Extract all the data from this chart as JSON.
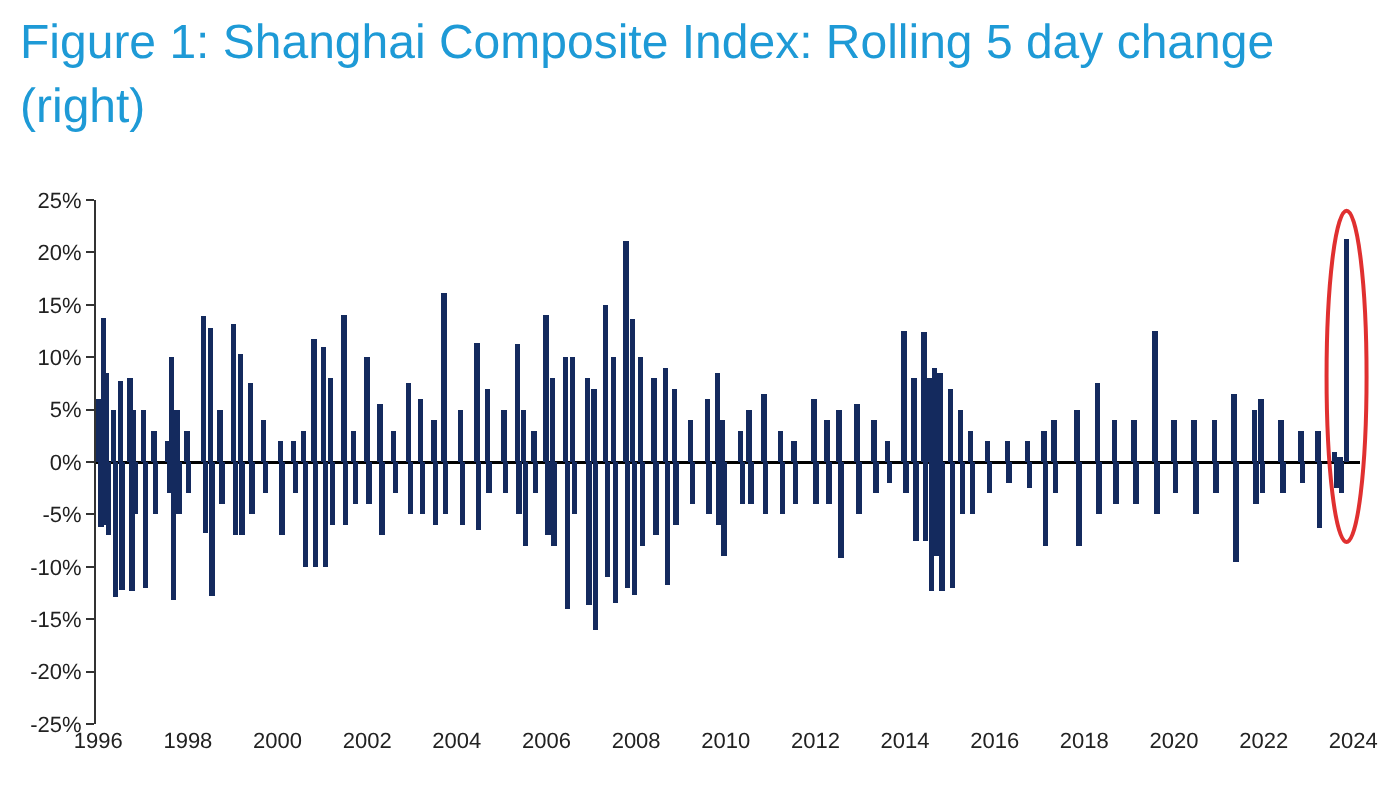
{
  "chart_data": {
    "type": "bar",
    "title": "Figure 1: Shanghai Composite Index: Rolling 5 day change (right)",
    "x": [
      1996.02,
      1996.06,
      1996.12,
      1996.16,
      1996.19,
      1996.23,
      1996.34,
      1996.38,
      1996.49,
      1996.53,
      1996.71,
      1996.75,
      1996.79,
      1996.83,
      1997.01,
      1997.05,
      1997.24,
      1997.28,
      1997.55,
      1997.59,
      1997.64,
      1997.68,
      1997.76,
      1997.8,
      1997.98,
      1998.02,
      1998.35,
      1998.39,
      1998.5,
      1998.54,
      1998.72,
      1998.76,
      1999.02,
      1999.06,
      1999.17,
      1999.21,
      1999.39,
      1999.43,
      1999.69,
      1999.73,
      2000.06,
      2000.1,
      2000.36,
      2000.4,
      2000.58,
      2000.62,
      2000.81,
      2000.85,
      2001.03,
      2001.07,
      2001.18,
      2001.22,
      2001.48,
      2001.52,
      2001.7,
      2001.74,
      2002.0,
      2002.04,
      2002.29,
      2002.33,
      2002.59,
      2002.63,
      2002.92,
      2002.96,
      2003.19,
      2003.23,
      2003.49,
      2003.53,
      2003.71,
      2003.75,
      2004.08,
      2004.12,
      2004.45,
      2004.49,
      2004.68,
      2004.72,
      2005.05,
      2005.09,
      2005.35,
      2005.39,
      2005.49,
      2005.53,
      2005.72,
      2005.76,
      2005.99,
      2006.03,
      2006.13,
      2006.17,
      2006.43,
      2006.47,
      2006.58,
      2006.62,
      2006.91,
      2006.95,
      2007.06,
      2007.1,
      2007.32,
      2007.36,
      2007.5,
      2007.54,
      2007.77,
      2007.81,
      2007.92,
      2007.96,
      2008.1,
      2008.14,
      2008.4,
      2008.44,
      2008.66,
      2008.7,
      2008.85,
      2008.89,
      2009.22,
      2009.26,
      2009.59,
      2009.63,
      2009.81,
      2009.85,
      2009.92,
      2009.96,
      2010.33,
      2010.37,
      2010.52,
      2010.56,
      2010.85,
      2010.89,
      2011.22,
      2011.26,
      2011.52,
      2011.56,
      2011.97,
      2012.01,
      2012.26,
      2012.3,
      2012.53,
      2012.57,
      2012.93,
      2012.97,
      2013.31,
      2013.35,
      2013.61,
      2013.65,
      2013.98,
      2014.02,
      2014.2,
      2014.24,
      2014.42,
      2014.46,
      2014.55,
      2014.59,
      2014.65,
      2014.69,
      2014.78,
      2014.82,
      2015.02,
      2015.06,
      2015.24,
      2015.28,
      2015.46,
      2015.5,
      2015.84,
      2015.88,
      2016.28,
      2016.32,
      2016.73,
      2016.77,
      2017.1,
      2017.14,
      2017.32,
      2017.36,
      2017.84,
      2017.88,
      2018.29,
      2018.33,
      2018.67,
      2018.71,
      2019.11,
      2019.15,
      2019.58,
      2019.62,
      2020.0,
      2020.04,
      2020.45,
      2020.49,
      2020.9,
      2020.94,
      2021.34,
      2021.38,
      2021.79,
      2021.83,
      2021.94,
      2021.98,
      2022.39,
      2022.43,
      2022.83,
      2022.87,
      2023.21,
      2023.25,
      2023.58,
      2023.62,
      2023.7,
      2023.74,
      2023.85
    ],
    "values": [
      6,
      -6.2,
      13.7,
      -6,
      8.5,
      -7,
      5,
      -12.9,
      7.7,
      -12.2,
      8,
      -12.3,
      5,
      -5,
      5,
      -12,
      3,
      -5,
      2,
      -3,
      10,
      -13.2,
      5,
      -5,
      3,
      -3,
      13.9,
      -6.8,
      12.8,
      -12.8,
      5,
      -4,
      13.2,
      -7,
      10.3,
      -7,
      7.5,
      -5,
      4,
      -3,
      2,
      -7,
      2,
      -3,
      3,
      -10,
      11.7,
      -10,
      11,
      -10,
      8,
      -6,
      14,
      -6,
      3,
      -4,
      10,
      -4,
      5.5,
      -7,
      3,
      -3,
      7.5,
      -5,
      6,
      -5,
      4,
      -6,
      16.1,
      -5,
      5,
      -6,
      11.4,
      -6.5,
      7,
      -3,
      5,
      -3,
      11.3,
      -5,
      5,
      -8,
      3,
      -3,
      14,
      -7,
      8,
      -8,
      10,
      -14,
      10,
      -5,
      8,
      -13.6,
      7,
      -16,
      15,
      -11,
      10,
      -13.5,
      21.1,
      -12,
      13.6,
      -12.7,
      10,
      -8,
      8,
      -7,
      9,
      -11.7,
      7,
      -6,
      4,
      -4,
      6,
      -5,
      8.5,
      -6,
      4,
      -9,
      3,
      -4,
      5,
      -4,
      6.5,
      -5,
      3,
      -5,
      2,
      -4,
      6,
      -4,
      4,
      -4,
      5,
      -9.2,
      5.5,
      -5,
      4,
      -3,
      2,
      -2,
      12.5,
      -3,
      8,
      -7.5,
      12.4,
      -7.5,
      8,
      -12.3,
      9,
      -9,
      8.5,
      -12.3,
      7,
      -12,
      5,
      -5,
      3,
      -5,
      2,
      -3,
      2,
      -2,
      2,
      -2.5,
      3,
      -8,
      4,
      -3,
      5,
      -8,
      7.5,
      -5,
      4,
      -4,
      4,
      -4,
      12.5,
      -5,
      4,
      -3,
      4,
      -5,
      4,
      -3,
      6.5,
      -9.5,
      5,
      -4,
      6,
      -3,
      4,
      -3,
      3,
      -2,
      3,
      -6.3,
      1,
      -2.5,
      0.5,
      -3,
      21.3
    ],
    "color": "#142a5e",
    "xlim": [
      1995.95,
      2024.15
    ],
    "xticks": [
      1996,
      1998,
      2000,
      2002,
      2004,
      2006,
      2008,
      2010,
      2012,
      2014,
      2016,
      2018,
      2020,
      2022,
      2024
    ],
    "ylim": [
      -25,
      25
    ],
    "yticks": [
      {
        "value": -25,
        "label": "-25%"
      },
      {
        "value": -20,
        "label": "-20%"
      },
      {
        "value": -15,
        "label": "-15%"
      },
      {
        "value": -10,
        "label": "-10%"
      },
      {
        "value": -5,
        "label": "-5%"
      },
      {
        "value": 0,
        "label": "0%"
      },
      {
        "value": 5,
        "label": "5%"
      },
      {
        "value": 10,
        "label": "10%"
      },
      {
        "value": 15,
        "label": "15%"
      },
      {
        "value": 20,
        "label": "20%"
      },
      {
        "value": 25,
        "label": "25%"
      }
    ]
  }
}
